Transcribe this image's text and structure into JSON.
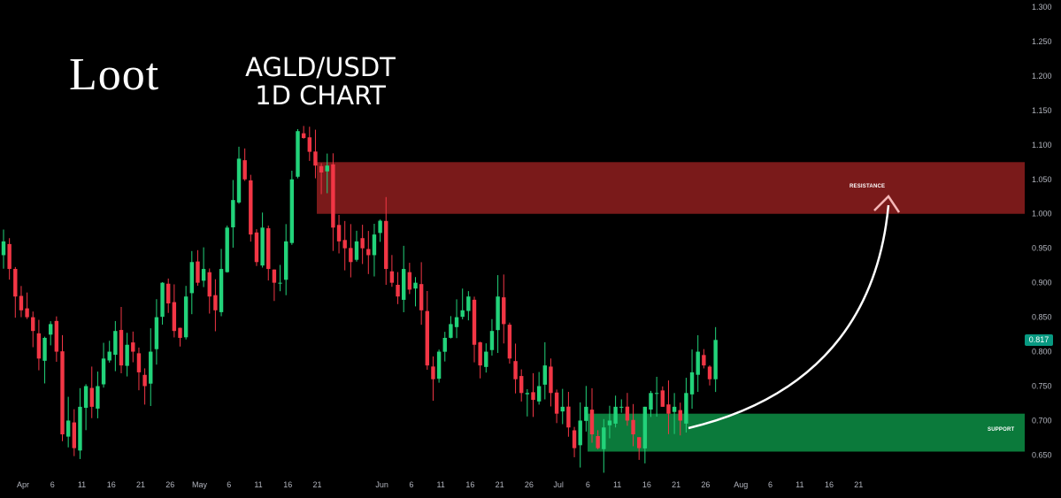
{
  "brand": "Loot",
  "title": {
    "line1": "AGLD/USDT",
    "line2": "1D CHART"
  },
  "zones": {
    "resistance": {
      "label": "RESISTANCE",
      "from": 1.0,
      "to": 1.075,
      "color": "#7a1a1a"
    },
    "support": {
      "label": "SUPPORT",
      "from": 0.655,
      "to": 0.71,
      "color": "#0b7a3b"
    }
  },
  "last_price": "0.817",
  "colors": {
    "up": "#22d37a",
    "down": "#f23645",
    "axis_text": "#b2b5be",
    "badge": "#089981"
  },
  "chart_data": {
    "type": "candlestick",
    "ylim": [
      0.63,
      1.3
    ],
    "y_ticks": [
      "0.650",
      "0.700",
      "0.750",
      "0.800",
      "0.850",
      "0.900",
      "0.950",
      "1.000",
      "1.050",
      "1.100",
      "1.150",
      "1.200",
      "1.250",
      "1.300"
    ],
    "x_ticks": [
      "Apr",
      "6",
      "11",
      "16",
      "21",
      "26",
      "May",
      "6",
      "11",
      "16",
      "21",
      "Jun",
      "6",
      "11",
      "16",
      "21",
      "26",
      "Jul",
      "6",
      "11",
      "16",
      "21",
      "26",
      "Aug",
      "6",
      "11",
      "16",
      "21"
    ],
    "close_series": [
      0.96,
      0.92,
      0.88,
      0.86,
      0.85,
      0.83,
      0.79,
      0.82,
      0.84,
      0.8,
      0.68,
      0.7,
      0.66,
      0.72,
      0.75,
      0.72,
      0.75,
      0.79,
      0.8,
      0.83,
      0.78,
      0.81,
      0.8,
      0.77,
      0.75,
      0.8,
      0.85,
      0.9,
      0.87,
      0.83,
      0.82,
      0.88,
      0.93,
      0.9,
      0.92,
      0.88,
      0.86,
      0.92,
      0.98,
      1.02,
      1.08,
      1.05,
      0.97,
      0.93,
      0.98,
      0.92,
      0.9,
      0.9,
      0.96,
      1.05,
      1.12,
      1.11,
      1.09,
      1.07,
      1.06,
      1.07,
      0.98,
      0.96,
      0.95,
      0.93,
      0.96,
      0.95,
      0.94,
      0.97,
      0.99,
      0.92,
      0.9,
      0.88,
      0.92,
      0.89,
      0.9,
      0.86,
      0.78,
      0.76,
      0.8,
      0.82,
      0.84,
      0.85,
      0.86,
      0.88,
      0.81,
      0.78,
      0.8,
      0.83,
      0.88,
      0.84,
      0.79,
      0.76,
      0.74,
      0.74,
      0.73,
      0.75,
      0.78,
      0.74,
      0.71,
      0.72,
      0.69,
      0.66,
      0.7,
      0.72,
      0.68,
      0.66,
      0.69,
      0.7,
      0.72,
      0.72,
      0.7,
      0.68,
      0.66,
      0.72,
      0.74,
      0.74,
      0.72,
      0.71,
      0.72,
      0.7,
      0.74,
      0.77,
      0.8,
      0.78,
      0.76,
      0.817
    ]
  }
}
